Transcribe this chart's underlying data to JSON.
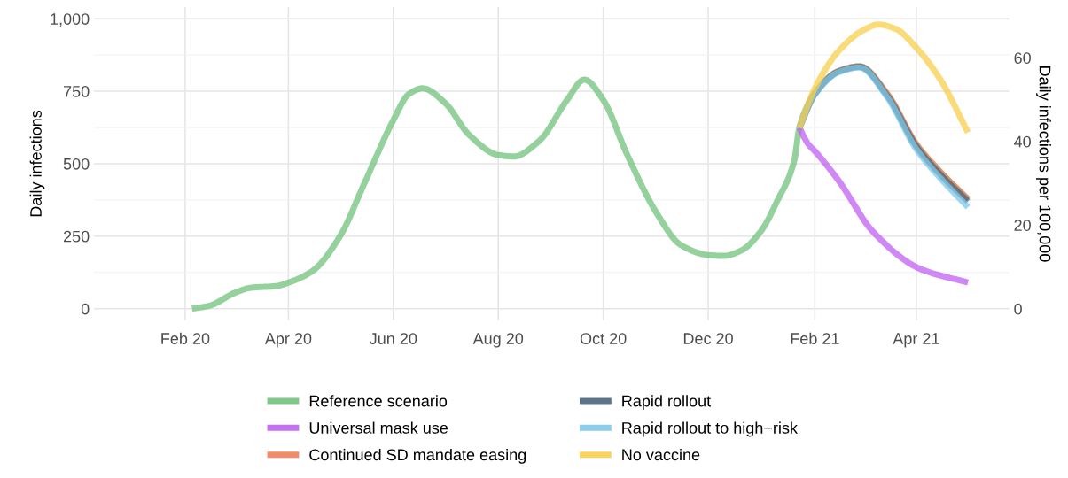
{
  "chart_data": {
    "type": "line",
    "ylabel": "Daily infections",
    "y2label": "Daily infections per 100,000",
    "xlim": [
      "2019-12-10",
      "2021-05-25"
    ],
    "ylim": [
      -40,
      1040
    ],
    "y2lim": [
      -2.77,
      72.1
    ],
    "xticks": [
      {
        "value": "2020-02-01",
        "label": "Feb 20"
      },
      {
        "value": "2020-04-01",
        "label": "Apr 20"
      },
      {
        "value": "2020-06-01",
        "label": "Jun 20"
      },
      {
        "value": "2020-08-01",
        "label": "Aug 20"
      },
      {
        "value": "2020-10-01",
        "label": "Oct 20"
      },
      {
        "value": "2020-12-01",
        "label": "Dec 20"
      },
      {
        "value": "2021-02-01",
        "label": "Feb 21"
      },
      {
        "value": "2021-04-01",
        "label": "Apr 21"
      }
    ],
    "yticks": [
      0,
      250,
      500,
      750,
      {
        "value": 1000,
        "label": "1,000"
      }
    ],
    "y2ticks": [
      0,
      20,
      40,
      60
    ],
    "grid": true,
    "legend": "bottom",
    "line_style": "solid",
    "marker": "none",
    "x": [
      "2020-02-05",
      "2020-02-15",
      "2020-03-01",
      "2020-03-10",
      "2020-03-25",
      "2020-04-01",
      "2020-04-15",
      "2020-05-01",
      "2020-05-15",
      "2020-06-01",
      "2020-06-10",
      "2020-06-18",
      "2020-07-01",
      "2020-07-15",
      "2020-08-01",
      "2020-08-10",
      "2020-08-25",
      "2020-09-10",
      "2020-09-20",
      "2020-10-01",
      "2020-10-15",
      "2020-11-01",
      "2020-11-15",
      "2020-12-01",
      "2020-12-10",
      "2020-12-20",
      "2021-01-01",
      "2021-01-10",
      "2021-01-20",
      "2021-01-23",
      "2021-02-01",
      "2021-02-15",
      "2021-02-27",
      "2021-03-15",
      "2021-04-01",
      "2021-04-15",
      "2021-05-01"
    ],
    "series": [
      {
        "name": "Reference scenario",
        "color": "#72c27c",
        "values": [
          0,
          10,
          55,
          72,
          78,
          90,
          130,
          250,
          430,
          650,
          740,
          760,
          710,
          600,
          530,
          525,
          580,
          720,
          790,
          720,
          530,
          330,
          220,
          185,
          182,
          200,
          270,
          370,
          510,
          624,
          743,
          820,
          836,
          740,
          565,
          470,
          376
        ]
      },
      {
        "name": "Universal mask use",
        "color": "#bf60f0",
        "x": [
          "2021-01-23",
          "2021-01-28",
          "2021-02-02",
          "2021-02-15",
          "2021-03-07",
          "2021-04-03",
          "2021-05-01"
        ],
        "values": [
          624,
          569,
          537,
          440,
          264,
          138,
          90
        ]
      },
      {
        "name": "Continued SD mandate easing",
        "color": "#f0805a",
        "x": [
          "2021-01-23",
          "2021-02-01",
          "2021-02-15",
          "2021-02-27",
          "2021-03-15",
          "2021-04-01",
          "2021-04-15",
          "2021-05-01"
        ],
        "values": [
          624,
          743,
          820,
          836,
          742,
          568,
          472,
          378
        ]
      },
      {
        "name": "Rapid rollout",
        "color": "#4a6580",
        "x": [
          "2021-01-23",
          "2021-02-01",
          "2021-02-15",
          "2021-02-27",
          "2021-03-15",
          "2021-04-01",
          "2021-04-15",
          "2021-05-01"
        ],
        "values": [
          624,
          740,
          818,
          834,
          735,
          560,
          462,
          370
        ]
      },
      {
        "name": "Rapid rollout to high−risk",
        "color": "#7ec8e8",
        "x": [
          "2021-01-23",
          "2021-02-01",
          "2021-02-15",
          "2021-02-27",
          "2021-03-15",
          "2021-04-01",
          "2021-04-15",
          "2021-05-01"
        ],
        "values": [
          624,
          740,
          816,
          832,
          730,
          550,
          450,
          350
        ]
      },
      {
        "name": "No vaccine",
        "color": "#f7cf4d",
        "x": [
          "2021-01-23",
          "2021-02-01",
          "2021-02-15",
          "2021-03-01",
          "2021-03-10",
          "2021-03-20",
          "2021-04-01",
          "2021-04-15",
          "2021-05-01"
        ],
        "values": [
          624,
          760,
          890,
          960,
          980,
          965,
          900,
          790,
          608
        ]
      }
    ]
  }
}
